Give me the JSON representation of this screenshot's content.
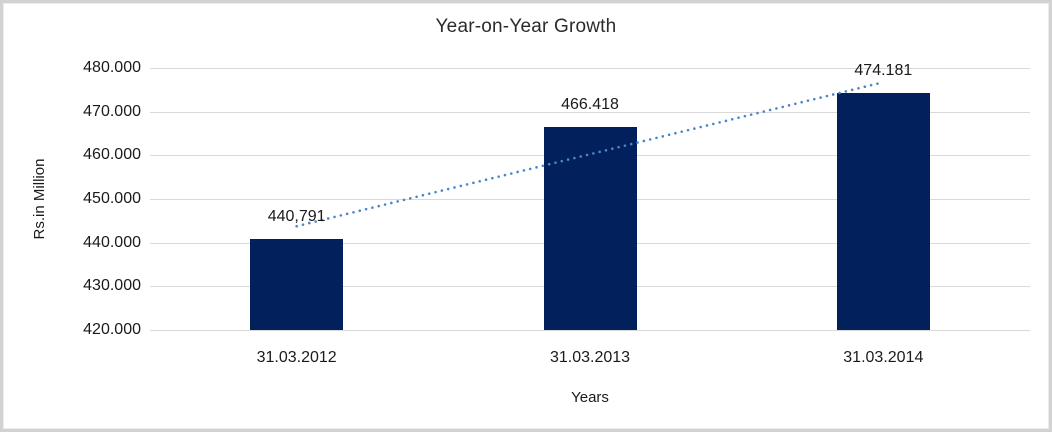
{
  "chart_data": {
    "type": "bar",
    "title": "Year-on-Year Growth",
    "categories": [
      "31.03.2012",
      "31.03.2013",
      "31.03.2014"
    ],
    "values": [
      440.791,
      466.418,
      474.181
    ],
    "data_labels": [
      "440,791",
      "466.418",
      "474.181"
    ],
    "xlabel": "Years",
    "ylabel": "Rs.in Million",
    "ylim": [
      420,
      480
    ],
    "ytick_step": 10,
    "ytick_labels": [
      "480.000",
      "470.000",
      "460.000",
      "450.000",
      "440.000",
      "430.000",
      "420.000"
    ],
    "grid": true,
    "legend": false,
    "trendline": "linear",
    "colors": {
      "bar": "#02215c",
      "trendline": "#4a86c8",
      "gridline": "#d9d9d9",
      "frame_border": "#d2d2d2",
      "text": "#1a1a1a"
    }
  }
}
